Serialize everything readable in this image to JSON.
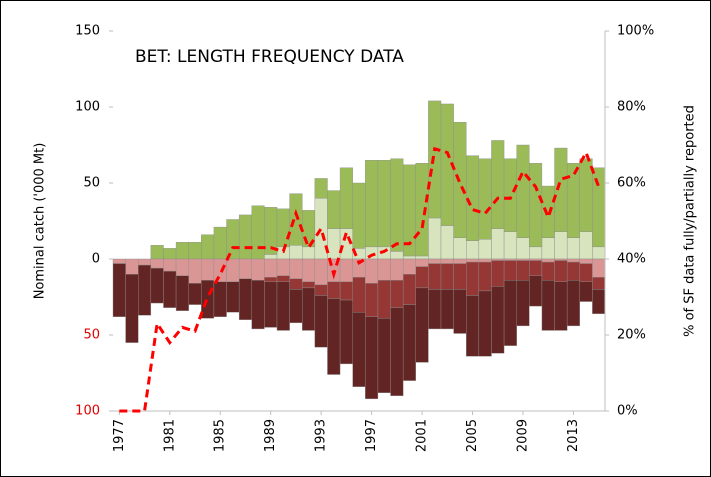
{
  "chart_data": {
    "type": "bar",
    "title": "BET: LENGTH FREQUENCY DATA",
    "y_label": "Nominal catch ('000 Mt)",
    "y2_label": "% of SF data fully/partially reported",
    "categories": [
      "1977",
      null,
      null,
      null,
      "1981",
      null,
      null,
      null,
      "1985",
      null,
      null,
      null,
      "1989",
      null,
      null,
      null,
      "1993",
      null,
      null,
      null,
      "1997",
      null,
      null,
      null,
      "2001",
      null,
      null,
      null,
      "2005",
      null,
      null,
      null,
      "2009",
      null,
      null,
      null,
      "2013",
      null,
      null
    ],
    "ylim": [
      -100,
      150
    ],
    "yticks": [
      {
        "value": -100,
        "label": "100"
      },
      {
        "value": -50,
        "label": "50"
      },
      0,
      50,
      100,
      150
    ],
    "negative_tick_color": "#e00000",
    "y2lim": [
      0,
      100
    ],
    "y2ticks": [
      {
        "value": 0,
        "label": "0%"
      },
      {
        "value": 20,
        "label": "20%"
      },
      {
        "value": 40,
        "label": "40%"
      },
      {
        "value": 60,
        "label": "60%"
      },
      {
        "value": 80,
        "label": "80%"
      },
      {
        "value": 100,
        "label": "100%"
      }
    ],
    "stacked": true,
    "series": [
      {
        "color": "#d7e4bd",
        "values": [
          0,
          0,
          0,
          0,
          0,
          0,
          0,
          0,
          0,
          0,
          0,
          0,
          3,
          8,
          9,
          8,
          40,
          20,
          20,
          7,
          8,
          8,
          5,
          2,
          2,
          27,
          22,
          14,
          12,
          13,
          20,
          18,
          14,
          8,
          14,
          18,
          14,
          18,
          8
        ]
      },
      {
        "color": "#9bbb59",
        "values": [
          0,
          0,
          0,
          9,
          7,
          11,
          11,
          16,
          21,
          26,
          29,
          35,
          31,
          25,
          34,
          24,
          13,
          25,
          40,
          43,
          57,
          57,
          61,
          60,
          61,
          77,
          80,
          76,
          56,
          53,
          58,
          48,
          61,
          55,
          34,
          55,
          49,
          48,
          52
        ]
      },
      {
        "color": "#d99694",
        "values": [
          -3,
          -10,
          -4,
          -6,
          -8,
          -11,
          -16,
          -14,
          -15,
          -15,
          -13,
          -14,
          -12,
          -11,
          -13,
          -15,
          -17,
          -15,
          -15,
          -12,
          -16,
          -14,
          -14,
          -10,
          -5,
          -3,
          -3,
          -3,
          -2,
          -2,
          -1,
          -1,
          -1,
          -1,
          -2,
          -1,
          -2,
          -3,
          -12
        ]
      },
      {
        "color": "#953735",
        "values": [
          0,
          0,
          0,
          0,
          0,
          0,
          0,
          0,
          0,
          0,
          0,
          0,
          -3,
          -4,
          -7,
          -4,
          -7,
          -11,
          -12,
          -23,
          -22,
          -25,
          -18,
          -20,
          -14,
          -17,
          -17,
          -17,
          -22,
          -19,
          -17,
          -13,
          -13,
          -10,
          -12,
          -14,
          -12,
          -12,
          -8
        ]
      },
      {
        "color": "#632523",
        "values": [
          -35,
          -45,
          -33,
          -23,
          -24,
          -23,
          -14,
          -25,
          -23,
          -20,
          -27,
          -32,
          -30,
          -32,
          -22,
          -28,
          -34,
          -50,
          -42,
          -49,
          -54,
          -49,
          -58,
          -50,
          -49,
          -26,
          -26,
          -29,
          -40,
          -43,
          -44,
          -43,
          -30,
          -20,
          -33,
          -32,
          -30,
          -13,
          -16
        ]
      },
      {
        "type": "line",
        "axis": "y2",
        "color": "#ff0000",
        "dashed": true,
        "values": [
          0,
          0,
          0,
          23,
          18,
          22,
          21,
          30,
          36,
          43,
          43,
          43,
          43,
          42,
          52,
          43,
          48,
          36,
          47,
          39,
          41,
          42,
          44,
          44,
          48,
          69,
          68,
          60,
          53,
          52,
          56,
          56,
          63,
          59,
          51,
          61,
          62,
          68,
          59
        ]
      }
    ]
  }
}
